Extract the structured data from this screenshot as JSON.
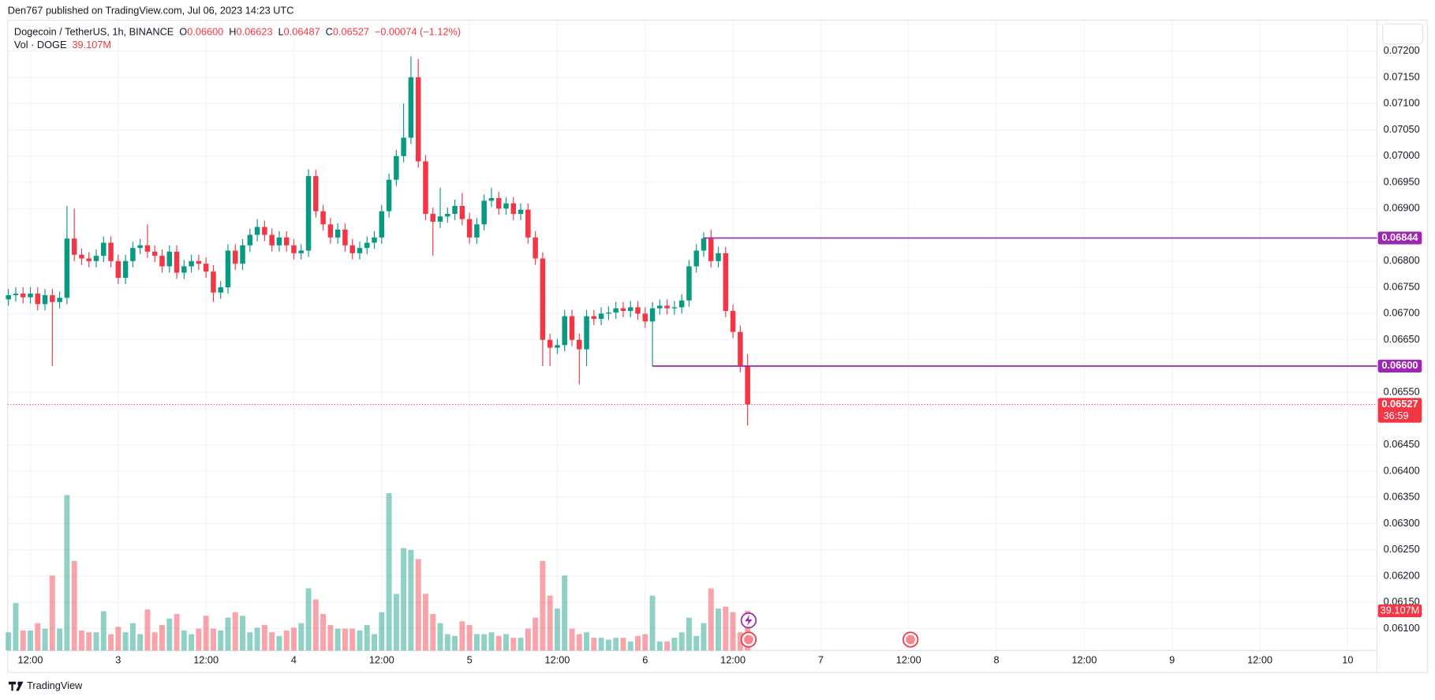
{
  "published": "Den767 published on TradingView.com, Jul 06, 2023 14:23 UTC",
  "header": {
    "symbol": "Dogecoin / TetherUS, 1h, BINANCE",
    "ohlc": [
      [
        "O",
        "0.06600"
      ],
      [
        "H",
        "0.06623"
      ],
      [
        "L",
        "0.06487"
      ],
      [
        "C",
        "0.06527"
      ]
    ],
    "change": "−0.00074 (−1.12%)"
  },
  "footer": "TradingView",
  "chart_data": {
    "type": "candlestick",
    "up_color": "#089981",
    "down_color": "#f23645",
    "grid": true,
    "x": [
      9,
      10,
      11,
      12,
      13,
      14,
      15,
      16,
      17,
      18,
      19,
      20,
      21,
      22,
      23,
      24,
      25,
      26,
      27,
      28,
      29,
      30,
      31,
      32,
      33,
      34,
      35,
      36,
      37,
      38,
      39,
      40,
      41,
      42,
      43,
      44,
      45,
      46,
      47,
      48,
      49,
      50,
      51,
      52,
      53,
      54,
      55,
      56,
      57,
      58,
      59,
      60,
      61,
      62,
      63,
      64,
      65,
      66,
      67,
      68,
      69,
      70,
      71,
      72,
      73,
      74,
      75,
      76,
      77,
      78,
      79,
      80,
      81,
      82,
      83,
      84,
      85,
      86,
      87,
      88,
      89,
      90,
      91,
      92,
      93,
      94,
      95,
      96,
      97,
      98,
      99,
      100,
      101,
      102,
      103,
      104,
      105,
      106,
      107,
      108,
      109,
      110
    ],
    "open": [
      0.06727,
      0.06735,
      0.06738,
      0.06731,
      0.06738,
      0.06718,
      0.06735,
      0.06722,
      0.0673,
      0.06843,
      0.06812,
      0.06805,
      0.068,
      0.0681,
      0.06835,
      0.068,
      0.06768,
      0.068,
      0.06825,
      0.0683,
      0.06818,
      0.0681,
      0.0679,
      0.06818,
      0.06778,
      0.0679,
      0.068,
      0.06795,
      0.0678,
      0.0674,
      0.0675,
      0.0682,
      0.06795,
      0.0683,
      0.0685,
      0.06865,
      0.0685,
      0.0683,
      0.06845,
      0.0683,
      0.06815,
      0.0682,
      0.06962,
      0.06895,
      0.0687,
      0.06845,
      0.0686,
      0.0683,
      0.06815,
      0.06825,
      0.06835,
      0.06845,
      0.06895,
      0.06955,
      0.07,
      0.07035,
      0.0715,
      0.0699,
      0.0689,
      0.06875,
      0.06885,
      0.0689,
      0.06905,
      0.0688,
      0.06845,
      0.0687,
      0.06915,
      0.0692,
      0.069,
      0.0691,
      0.0689,
      0.06898,
      0.06845,
      0.06805,
      0.0665,
      0.06635,
      0.0664,
      0.06695,
      0.0665,
      0.06632,
      0.06695,
      0.0669,
      0.067,
      0.06702,
      0.0671,
      0.06705,
      0.06712,
      0.067,
      0.06685,
      0.0671,
      0.06715,
      0.0671,
      0.06712,
      0.06725,
      0.0679,
      0.0682,
      0.06843,
      0.068,
      0.06815,
      0.06705,
      0.06665,
      0.066
    ],
    "high": [
      0.06747,
      0.0675,
      0.0675,
      0.0675,
      0.0675,
      0.06747,
      0.06747,
      0.06742,
      0.06905,
      0.069,
      0.06824,
      0.06817,
      0.06822,
      0.06847,
      0.06847,
      0.06812,
      0.06812,
      0.06837,
      0.06842,
      0.0687,
      0.0683,
      0.06822,
      0.0683,
      0.0683,
      0.06802,
      0.06812,
      0.06812,
      0.06807,
      0.06792,
      0.06762,
      0.06832,
      0.06832,
      0.06842,
      0.06862,
      0.0688,
      0.06877,
      0.06862,
      0.06857,
      0.06857,
      0.06842,
      0.06832,
      0.06975,
      0.06974,
      0.06907,
      0.06882,
      0.06872,
      0.06872,
      0.06842,
      0.06837,
      0.06847,
      0.06857,
      0.06907,
      0.06967,
      0.07012,
      0.071,
      0.0719,
      0.07185,
      0.07002,
      0.06902,
      0.0694,
      0.06902,
      0.06917,
      0.0693,
      0.06892,
      0.06882,
      0.06927,
      0.0694,
      0.06932,
      0.06922,
      0.06922,
      0.0691,
      0.0691,
      0.06857,
      0.06817,
      0.06662,
      0.06652,
      0.06707,
      0.06707,
      0.06662,
      0.06707,
      0.06707,
      0.06712,
      0.06714,
      0.06722,
      0.06722,
      0.06724,
      0.06724,
      0.06712,
      0.06722,
      0.06727,
      0.06727,
      0.06724,
      0.06737,
      0.06802,
      0.06832,
      0.06855,
      0.0686,
      0.06827,
      0.06827,
      0.06717,
      0.06677,
      0.06623
    ],
    "low": [
      0.06715,
      0.06723,
      0.06719,
      0.06719,
      0.06706,
      0.06706,
      0.066,
      0.0671,
      0.06718,
      0.068,
      0.06793,
      0.06788,
      0.06788,
      0.06798,
      0.06788,
      0.06756,
      0.06756,
      0.06788,
      0.06813,
      0.06806,
      0.06798,
      0.06778,
      0.06778,
      0.06766,
      0.06766,
      0.06778,
      0.06783,
      0.06768,
      0.06722,
      0.06728,
      0.06738,
      0.06783,
      0.06783,
      0.06818,
      0.06838,
      0.06838,
      0.06818,
      0.06818,
      0.06818,
      0.06803,
      0.06803,
      0.06808,
      0.06883,
      0.06858,
      0.06833,
      0.06833,
      0.06818,
      0.06803,
      0.06803,
      0.06813,
      0.06823,
      0.06833,
      0.06883,
      0.06943,
      0.06988,
      0.07023,
      0.06978,
      0.06878,
      0.0681,
      0.06863,
      0.06873,
      0.06878,
      0.06868,
      0.06833,
      0.06833,
      0.06858,
      0.06903,
      0.06888,
      0.06888,
      0.06878,
      0.06878,
      0.06833,
      0.06793,
      0.066,
      0.066,
      0.06623,
      0.06628,
      0.06638,
      0.06565,
      0.066,
      0.06678,
      0.06678,
      0.06688,
      0.0669,
      0.06693,
      0.06693,
      0.06688,
      0.06673,
      0.066,
      0.06698,
      0.06698,
      0.06698,
      0.067,
      0.06713,
      0.06778,
      0.06808,
      0.06788,
      0.06788,
      0.06693,
      0.06653,
      0.06588,
      0.06487
    ],
    "close": [
      0.06735,
      0.06738,
      0.06731,
      0.06738,
      0.06718,
      0.06735,
      0.06722,
      0.0673,
      0.06843,
      0.06812,
      0.06805,
      0.068,
      0.0681,
      0.06835,
      0.068,
      0.06768,
      0.068,
      0.06825,
      0.0683,
      0.06818,
      0.0681,
      0.0679,
      0.06818,
      0.06778,
      0.0679,
      0.068,
      0.06795,
      0.0678,
      0.0674,
      0.0675,
      0.0682,
      0.06795,
      0.0683,
      0.0685,
      0.06865,
      0.0685,
      0.0683,
      0.06845,
      0.0683,
      0.06815,
      0.0682,
      0.06962,
      0.06895,
      0.0687,
      0.06845,
      0.0686,
      0.0683,
      0.06815,
      0.06825,
      0.06835,
      0.06845,
      0.06895,
      0.06955,
      0.07,
      0.07035,
      0.0715,
      0.0699,
      0.0689,
      0.06875,
      0.06885,
      0.0689,
      0.06905,
      0.0688,
      0.06845,
      0.0687,
      0.06915,
      0.0692,
      0.069,
      0.0691,
      0.0689,
      0.06898,
      0.06845,
      0.06805,
      0.0665,
      0.06635,
      0.0664,
      0.06695,
      0.0665,
      0.06632,
      0.06695,
      0.0669,
      0.067,
      0.06702,
      0.0671,
      0.06705,
      0.06712,
      0.067,
      0.06685,
      0.0671,
      0.06715,
      0.0671,
      0.06712,
      0.06725,
      0.0679,
      0.0682,
      0.06843,
      0.068,
      0.06815,
      0.06705,
      0.06665,
      0.066,
      0.06527
    ],
    "volume": {
      "name": "Vol · DOGE",
      "last_label": "39.107M",
      "values": [
        18,
        46.8,
        19.8,
        19.8,
        27,
        21.6,
        73.8,
        21.6,
        153,
        88.2,
        19.8,
        18,
        18,
        38.7,
        16.2,
        23.4,
        18,
        27,
        16.2,
        40.5,
        18,
        25.2,
        31.5,
        36,
        19.8,
        16.2,
        21.6,
        34.2,
        21.6,
        19.8,
        32.4,
        37.8,
        34.2,
        18,
        22.5,
        25.2,
        18,
        14.4,
        19.8,
        22.5,
        27,
        61.2,
        50.4,
        36,
        25.2,
        21.6,
        21.6,
        21.6,
        19.8,
        25.2,
        16.2,
        37.8,
        154.8,
        55.8,
        100.8,
        99,
        90,
        55.8,
        36,
        27,
        16.2,
        14.4,
        28.8,
        25.2,
        16.2,
        16.2,
        18,
        14.4,
        16.2,
        12.6,
        12.6,
        21.6,
        32.4,
        88.2,
        54,
        41.4,
        73.8,
        21.6,
        16.2,
        18,
        12.6,
        12.6,
        10.8,
        12.6,
        12.6,
        9,
        14.4,
        16.2,
        54,
        9,
        9,
        12.6,
        18,
        32.4,
        14.4,
        27,
        61.2,
        41.4,
        43.2,
        37.8,
        18,
        39.107
      ]
    },
    "levels": [
      {
        "value": 0.06844,
        "label": "0.06844",
        "x": 104,
        "color": "#9c27b0"
      },
      {
        "value": 0.066,
        "label": "0.06600",
        "x": 97,
        "color": "#9c27b0"
      }
    ],
    "last_price": {
      "value": 0.06527,
      "label": "0.06527",
      "countdown": "36:59"
    },
    "xlim": [
      8.9,
      196
    ],
    "xticks": [
      {
        "value": 12,
        "label": "12:00"
      },
      {
        "value": 24,
        "label": "3"
      },
      {
        "value": 36,
        "label": "12:00"
      },
      {
        "value": 48,
        "label": "4"
      },
      {
        "value": 60,
        "label": "12:00"
      },
      {
        "value": 72,
        "label": "5"
      },
      {
        "value": 84,
        "label": "12:00"
      },
      {
        "value": 96,
        "label": "6"
      },
      {
        "value": 108,
        "label": "12:00"
      },
      {
        "value": 120,
        "label": "7"
      },
      {
        "value": 132,
        "label": "12:00"
      },
      {
        "value": 144,
        "label": "8"
      },
      {
        "value": 156,
        "label": "12:00"
      },
      {
        "value": 168,
        "label": "9"
      },
      {
        "value": 180,
        "label": "12:00"
      },
      {
        "value": 192,
        "label": "10"
      }
    ],
    "ylim": [
      0.06058,
      0.07259
    ],
    "yticks": [
      {
        "value": 0.061,
        "label": "0.06100"
      },
      {
        "value": 0.0615,
        "label": "0.06150"
      },
      {
        "value": 0.062,
        "label": "0.06200"
      },
      {
        "value": 0.0625,
        "label": "0.06250"
      },
      {
        "value": 0.063,
        "label": "0.06300"
      },
      {
        "value": 0.0635,
        "label": "0.06350"
      },
      {
        "value": 0.064,
        "label": "0.06400"
      },
      {
        "value": 0.0645,
        "label": "0.06450"
      },
      {
        "value": 0.0655,
        "label": "0.06550"
      },
      {
        "value": 0.0665,
        "label": "0.06650"
      },
      {
        "value": 0.067,
        "label": "0.06700"
      },
      {
        "value": 0.0675,
        "label": "0.06750"
      },
      {
        "value": 0.068,
        "label": "0.06800"
      },
      {
        "value": 0.069,
        "label": "0.06900"
      },
      {
        "value": 0.0695,
        "label": "0.06950"
      },
      {
        "value": 0.07,
        "label": "0.07000"
      },
      {
        "value": 0.0705,
        "label": "0.07050"
      },
      {
        "value": 0.071,
        "label": "0.07100"
      },
      {
        "value": 0.0715,
        "label": "0.07150"
      },
      {
        "value": 0.072,
        "label": "0.07200"
      }
    ]
  }
}
